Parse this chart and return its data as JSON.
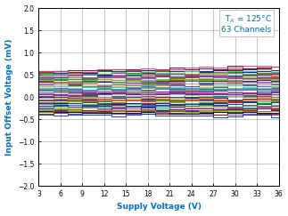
{
  "title": "",
  "xlabel": "Supply Voltage (V)",
  "ylabel": "Input Offset Voltage (mV)",
  "xlim": [
    3,
    36
  ],
  "ylim": [
    -2,
    2
  ],
  "xticks": [
    3,
    6,
    9,
    12,
    15,
    18,
    21,
    24,
    27,
    30,
    33,
    36
  ],
  "yticks": [
    -2,
    -1.5,
    -1,
    -0.5,
    0,
    0.5,
    1,
    1.5,
    2
  ],
  "annotation_text": "T$_A$ = 125°C\n63 Channels",
  "num_channels": 63,
  "background_color": "#ffffff",
  "grid_color": "#000000",
  "label_color": "#0070c0",
  "annotation_color": "#0070c0",
  "colors": [
    "#ff0000",
    "#008800",
    "#0000cc",
    "#ff8800",
    "#880088",
    "#008888",
    "#666600",
    "#cc2200",
    "#004400",
    "#222288",
    "#ff4488",
    "#008844",
    "#6644cc",
    "#cc8822",
    "#446644",
    "#6666aa",
    "#664422",
    "#224466",
    "#442266",
    "#664444",
    "#226622",
    "#aa2200",
    "#0022aa",
    "#22aa00",
    "#aa0022",
    "#2200aa",
    "#00aa22",
    "#aaaa00",
    "#00aaaa",
    "#aa00aa",
    "#555500",
    "#005555",
    "#550055",
    "#333333",
    "#777777",
    "#cc6666",
    "#66cc66",
    "#6666cc",
    "#ccaa66",
    "#66ccaa",
    "#aa66cc",
    "#ccaaaa",
    "#aaccaa",
    "#aaaacc",
    "#cc4444",
    "#44cc44",
    "#4444cc",
    "#cc8844",
    "#88cc44",
    "#8844cc",
    "#cc4488",
    "#44cc88",
    "#8844cc",
    "#aaaa00",
    "#00aacc",
    "#aa00cc",
    "#cc6600",
    "#004488",
    "#660088",
    "#882200",
    "#004499",
    "#220044",
    "#999900",
    "#009999",
    "#990099"
  ],
  "channel_configs": [
    {
      "y_mid": 0.6,
      "slope": 0.002
    },
    {
      "y_mid": 0.57,
      "slope": 0.001
    },
    {
      "y_mid": 0.54,
      "slope": 0.001
    },
    {
      "y_mid": 0.51,
      "slope": 0.001
    },
    {
      "y_mid": 0.48,
      "slope": 0.001
    },
    {
      "y_mid": 0.45,
      "slope": 0.002
    },
    {
      "y_mid": 0.42,
      "slope": 0.001
    },
    {
      "y_mid": 0.39,
      "slope": 0.001
    },
    {
      "y_mid": 0.36,
      "slope": 0.001
    },
    {
      "y_mid": 0.33,
      "slope": 0.001
    },
    {
      "y_mid": 0.3,
      "slope": 0.001
    },
    {
      "y_mid": 0.27,
      "slope": 0.001
    },
    {
      "y_mid": 0.24,
      "slope": 0.001
    },
    {
      "y_mid": 0.21,
      "slope": 0.001
    },
    {
      "y_mid": 0.18,
      "slope": 0.001
    },
    {
      "y_mid": 0.15,
      "slope": 0.001
    },
    {
      "y_mid": 0.12,
      "slope": 0.001
    },
    {
      "y_mid": 0.09,
      "slope": 0.001
    },
    {
      "y_mid": 0.06,
      "slope": 0.001
    },
    {
      "y_mid": 0.03,
      "slope": 0.001
    },
    {
      "y_mid": 0.0,
      "slope": 0.001
    },
    {
      "y_mid": -0.03,
      "slope": 0.001
    },
    {
      "y_mid": -0.06,
      "slope": 0.001
    },
    {
      "y_mid": -0.09,
      "slope": 0.001
    },
    {
      "y_mid": -0.12,
      "slope": 0.001
    },
    {
      "y_mid": -0.15,
      "slope": 0.001
    },
    {
      "y_mid": -0.18,
      "slope": 0.001
    },
    {
      "y_mid": -0.21,
      "slope": 0.001
    },
    {
      "y_mid": -0.24,
      "slope": 0.001
    },
    {
      "y_mid": -0.27,
      "slope": 0.001
    },
    {
      "y_mid": -0.3,
      "slope": 0.001
    },
    {
      "y_mid": -0.33,
      "slope": 0.002
    },
    {
      "y_mid": 0.62,
      "slope": 0.003
    },
    {
      "y_mid": 0.58,
      "slope": 0.002
    },
    {
      "y_mid": 0.52,
      "slope": 0.001
    },
    {
      "y_mid": 0.46,
      "slope": 0.001
    },
    {
      "y_mid": 0.4,
      "slope": 0.001
    },
    {
      "y_mid": 0.34,
      "slope": 0.001
    },
    {
      "y_mid": 0.28,
      "slope": 0.001
    },
    {
      "y_mid": 0.22,
      "slope": 0.001
    },
    {
      "y_mid": 0.16,
      "slope": 0.001
    },
    {
      "y_mid": 0.1,
      "slope": 0.001
    },
    {
      "y_mid": 0.04,
      "slope": 0.001
    },
    {
      "y_mid": -0.02,
      "slope": 0.001
    },
    {
      "y_mid": -0.08,
      "slope": 0.001
    },
    {
      "y_mid": -0.14,
      "slope": 0.001
    },
    {
      "y_mid": -0.2,
      "slope": 0.001
    },
    {
      "y_mid": -0.26,
      "slope": 0.001
    },
    {
      "y_mid": -0.32,
      "slope": -0.001
    },
    {
      "y_mid": -0.38,
      "slope": -0.001
    },
    {
      "y_mid": 0.64,
      "slope": 0.004
    },
    {
      "y_mid": 0.55,
      "slope": 0.003
    },
    {
      "y_mid": 0.44,
      "slope": 0.001
    },
    {
      "y_mid": 0.37,
      "slope": 0.001
    },
    {
      "y_mid": 0.19,
      "slope": 0.001
    },
    {
      "y_mid": 0.07,
      "slope": 0.001
    },
    {
      "y_mid": -0.05,
      "slope": 0.001
    },
    {
      "y_mid": -0.17,
      "slope": 0.001
    },
    {
      "y_mid": -0.29,
      "slope": 0.001
    },
    {
      "y_mid": -0.36,
      "slope": -0.001
    },
    {
      "y_mid": -0.42,
      "slope": -0.001
    },
    {
      "y_mid": -0.34,
      "slope": -0.001
    },
    {
      "y_mid": -0.31,
      "slope": 0.0
    }
  ]
}
